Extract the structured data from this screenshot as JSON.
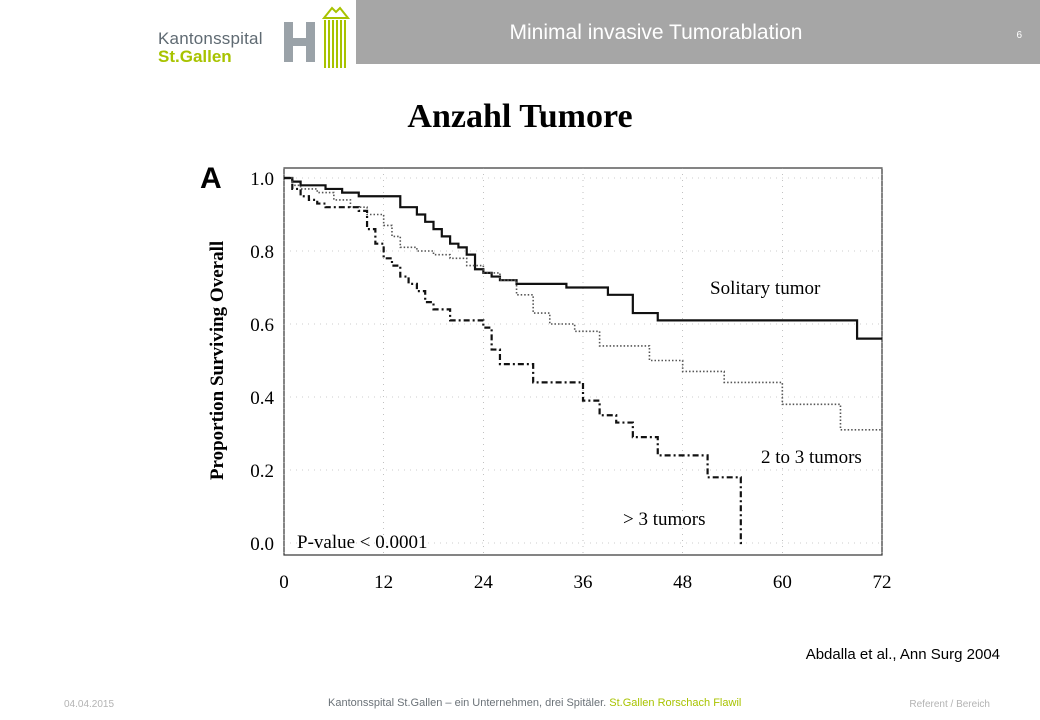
{
  "header": {
    "logo_line1": "Kantonsspital",
    "logo_line2": "St.Gallen",
    "title": "Minimal invasive Tumorablation",
    "page_number": "6"
  },
  "slide": {
    "title": "Anzahl Tumore",
    "citation": "Abdalla et al., Ann Surg 2004"
  },
  "footer": {
    "date": "04.04.2015",
    "center_prefix": "Kantonsspital St.Gallen – ein Unternehmen, drei Spitäler.",
    "center_locations": "St.Gallen Rorschach Flawil",
    "right": "Referent / Bereich"
  },
  "colors": {
    "header_bar": "#a6a6a6",
    "brand_green": "#a8c300",
    "brand_gray": "#5f6a72"
  },
  "chart_data": {
    "type": "line",
    "panel_label": "A",
    "ylabel": "Proportion Surviving Overall",
    "xlabel": "",
    "xlim": [
      0,
      72
    ],
    "ylim": [
      0,
      1.0
    ],
    "xticks": [
      0,
      12,
      24,
      36,
      48,
      60,
      72
    ],
    "yticks": [
      0.0,
      0.2,
      0.4,
      0.6,
      0.8,
      1.0
    ],
    "xtick_labels": [
      "0",
      "12",
      "24",
      "36",
      "48",
      "60",
      "72"
    ],
    "ytick_labels": [
      "0.0",
      "0.2",
      "0.4",
      "0.6",
      "0.8",
      "1.0"
    ],
    "grid": true,
    "annotation": "P-value < 0.0001",
    "series": [
      {
        "name": "Solitary tumor",
        "style": "solid",
        "x": [
          0,
          1,
          2,
          3,
          5,
          7,
          9,
          11,
          14,
          16,
          17,
          18,
          19,
          20,
          21,
          22,
          23,
          24,
          25,
          26,
          28,
          34,
          39,
          42,
          45,
          69,
          72
        ],
        "y": [
          1.0,
          0.99,
          0.98,
          0.98,
          0.97,
          0.96,
          0.95,
          0.95,
          0.92,
          0.9,
          0.88,
          0.86,
          0.84,
          0.82,
          0.81,
          0.79,
          0.75,
          0.74,
          0.73,
          0.72,
          0.71,
          0.7,
          0.68,
          0.63,
          0.61,
          0.56,
          0.56
        ]
      },
      {
        "name": "2 to 3 tumors",
        "style": "dotted",
        "x": [
          0,
          1,
          2,
          4,
          6,
          8,
          10,
          12,
          13,
          14,
          16,
          18,
          20,
          22,
          24,
          26,
          28,
          30,
          32,
          35,
          38,
          44,
          48,
          53,
          60,
          62,
          67,
          72
        ],
        "y": [
          1.0,
          0.98,
          0.97,
          0.96,
          0.94,
          0.92,
          0.9,
          0.87,
          0.84,
          0.81,
          0.8,
          0.79,
          0.78,
          0.76,
          0.74,
          0.72,
          0.68,
          0.63,
          0.6,
          0.58,
          0.54,
          0.5,
          0.47,
          0.44,
          0.38,
          0.38,
          0.31,
          0.31
        ]
      },
      {
        "name": "> 3 tumors",
        "style": "dash-dot",
        "x": [
          0,
          1,
          2,
          3,
          4,
          5,
          6,
          7,
          9,
          10,
          11,
          12,
          13,
          14,
          15,
          16,
          17,
          18,
          20,
          24,
          25,
          26,
          30,
          36,
          38,
          40,
          42,
          45,
          51,
          55,
          55.5
        ],
        "y": [
          1.0,
          0.97,
          0.95,
          0.94,
          0.93,
          0.92,
          0.92,
          0.92,
          0.91,
          0.86,
          0.82,
          0.78,
          0.76,
          0.73,
          0.71,
          0.69,
          0.66,
          0.64,
          0.61,
          0.59,
          0.53,
          0.49,
          0.44,
          0.39,
          0.35,
          0.33,
          0.29,
          0.24,
          0.18,
          0.0,
          0.0
        ]
      }
    ]
  }
}
